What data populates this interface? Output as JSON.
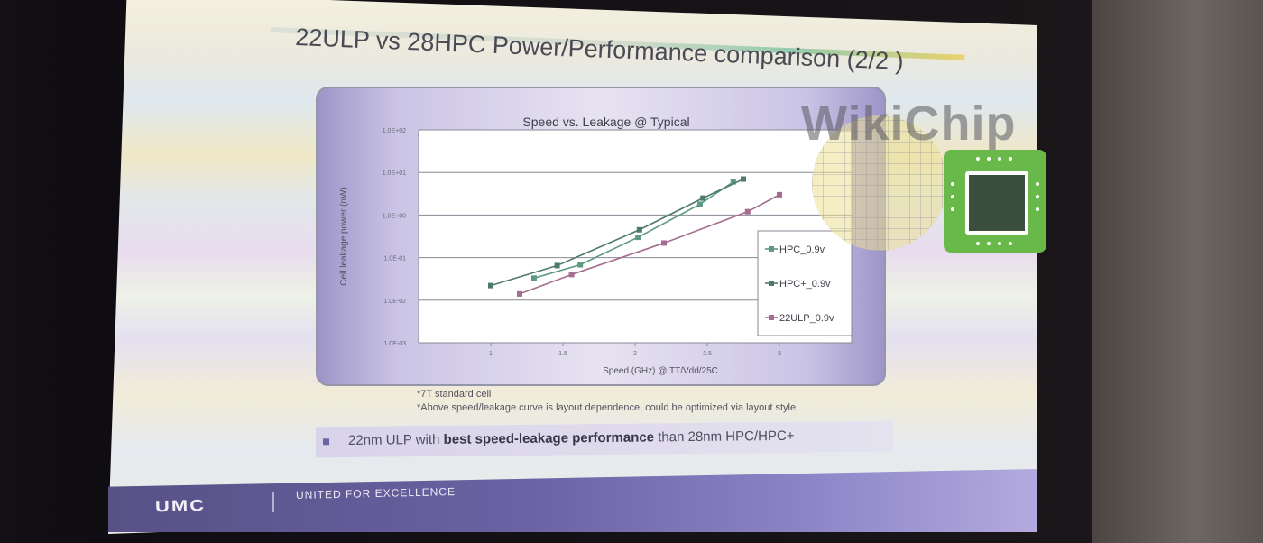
{
  "slide": {
    "title": "22ULP vs 28HPC Power/Performance comparison (2/2 )",
    "footnotes": [
      "*7T standard cell",
      "*Above speed/leakage curve is layout dependence, could be optimized via layout style"
    ],
    "bullet": {
      "pre": "22nm ULP with ",
      "bold": "best speed-leakage performance",
      "post": " than 28nm HPC/HPC+"
    },
    "footer": {
      "logo": "UMC",
      "tagline": "UNITED FOR EXCELLENCE"
    },
    "watermark": "WikiChip"
  },
  "chart_data": {
    "type": "line",
    "title": "Speed vs. Leakage @ Typical",
    "xlabel": "Speed (GHz) @ TT/Vdd/25C",
    "ylabel": "Cell leakage power (nW)",
    "y_scale": "log",
    "ylim": [
      0.001,
      100
    ],
    "xlim": [
      0.5,
      3.5
    ],
    "x_ticks": [
      {
        "v": 1,
        "label": "1"
      },
      {
        "v": 1.5,
        "label": "1.5"
      },
      {
        "v": 2,
        "label": "2"
      },
      {
        "v": 2.5,
        "label": "2.5"
      },
      {
        "v": 3,
        "label": "3"
      }
    ],
    "y_ticks": [
      {
        "v": 0.001,
        "label": "1.0E-03"
      },
      {
        "v": 0.01,
        "label": "1.0E-02"
      },
      {
        "v": 0.1,
        "label": "1.0E-01"
      },
      {
        "v": 1,
        "label": "1.0E+00"
      },
      {
        "v": 10,
        "label": "1.0E+01"
      },
      {
        "v": 100,
        "label": "1.0E+02"
      }
    ],
    "grid": true,
    "legend_position": "right",
    "series": [
      {
        "name": "HPC_0.9v",
        "color": "#5e9a82",
        "x": [
          1.3,
          1.62,
          2.02,
          2.45,
          2.68
        ],
        "y": [
          0.033,
          0.068,
          0.3,
          1.8,
          6.0
        ]
      },
      {
        "name": "HPC+_0.9v",
        "color": "#4e7a6e",
        "x": [
          1.0,
          1.46,
          2.03,
          2.47,
          2.75
        ],
        "y": [
          0.022,
          0.065,
          0.45,
          2.5,
          7.0
        ]
      },
      {
        "name": "22ULP_0.9v",
        "color": "#a46c8e",
        "x": [
          1.2,
          1.56,
          2.2,
          2.78,
          3.0
        ],
        "y": [
          0.014,
          0.04,
          0.22,
          1.2,
          3.0
        ]
      }
    ]
  }
}
